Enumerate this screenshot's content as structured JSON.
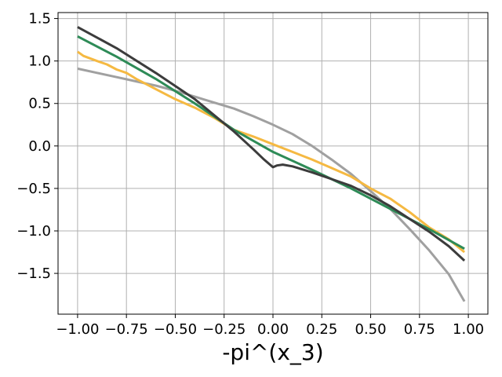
{
  "chart_data": {
    "type": "line",
    "title": "",
    "xlabel": "-pi^(x_3)",
    "ylabel": "",
    "xlim": [
      -1.1,
      1.1
    ],
    "ylim": [
      -1.98,
      1.57
    ],
    "grid": true,
    "legend": "none",
    "x_ticks": [
      -1.0,
      -0.75,
      -0.5,
      -0.25,
      0.0,
      0.25,
      0.5,
      0.75,
      1.0
    ],
    "x_tick_labels": [
      "−1.00",
      "−0.75",
      "−0.50",
      "−0.25",
      "0.00",
      "0.25",
      "0.50",
      "0.75",
      "1.00"
    ],
    "y_ticks": [
      1.5,
      1.0,
      0.5,
      0.0,
      -0.5,
      -1.0,
      -1.5
    ],
    "y_tick_labels": [
      "1.5",
      "1.0",
      "0.5",
      "0.0",
      "−0.5",
      "−1.0",
      "−1.5"
    ],
    "series": [
      {
        "color": "#a0a0a0",
        "x": [
          -1.0,
          -0.9,
          -0.8,
          -0.7,
          -0.6,
          -0.5,
          -0.4,
          -0.3,
          -0.2,
          -0.1,
          0.0,
          0.1,
          0.2,
          0.3,
          0.4,
          0.5,
          0.6,
          0.7,
          0.8,
          0.9,
          0.98
        ],
        "y": [
          0.91,
          0.86,
          0.81,
          0.76,
          0.71,
          0.65,
          0.58,
          0.51,
          0.44,
          0.35,
          0.25,
          0.14,
          0.0,
          -0.16,
          -0.33,
          -0.53,
          -0.74,
          -0.98,
          -1.23,
          -1.51,
          -1.83
        ]
      },
      {
        "color": "#f5b942",
        "x": [
          -1.0,
          -0.97,
          -0.9,
          -0.85,
          -0.8,
          -0.75,
          -0.7,
          -0.65,
          -0.6,
          -0.5,
          -0.4,
          -0.3,
          -0.2,
          -0.1,
          0.0,
          0.1,
          0.2,
          0.3,
          0.4,
          0.5,
          0.6,
          0.7,
          0.8,
          0.9,
          0.98
        ],
        "y": [
          1.11,
          1.06,
          1.0,
          0.96,
          0.9,
          0.86,
          0.79,
          0.73,
          0.67,
          0.55,
          0.45,
          0.33,
          0.19,
          0.11,
          0.02,
          -0.07,
          -0.16,
          -0.26,
          -0.36,
          -0.5,
          -0.62,
          -0.78,
          -0.96,
          -1.1,
          -1.25
        ]
      },
      {
        "color": "#2e8b57",
        "x": [
          -1.0,
          -0.8,
          -0.6,
          -0.4,
          -0.2,
          0.0,
          0.2,
          0.4,
          0.6,
          0.8,
          0.98
        ],
        "y": [
          1.29,
          1.05,
          0.79,
          0.5,
          0.19,
          -0.07,
          -0.28,
          -0.5,
          -0.74,
          -0.98,
          -1.21
        ]
      },
      {
        "color": "#3c3c3c",
        "x": [
          -1.0,
          -0.8,
          -0.6,
          -0.4,
          -0.2,
          -0.1,
          -0.05,
          0.0,
          0.02,
          0.05,
          0.1,
          0.2,
          0.3,
          0.4,
          0.5,
          0.6,
          0.7,
          0.8,
          0.9,
          0.98
        ],
        "y": [
          1.4,
          1.15,
          0.86,
          0.55,
          0.17,
          -0.04,
          -0.15,
          -0.25,
          -0.23,
          -0.22,
          -0.24,
          -0.31,
          -0.39,
          -0.47,
          -0.58,
          -0.71,
          -0.86,
          -1.01,
          -1.18,
          -1.35
        ]
      }
    ]
  }
}
